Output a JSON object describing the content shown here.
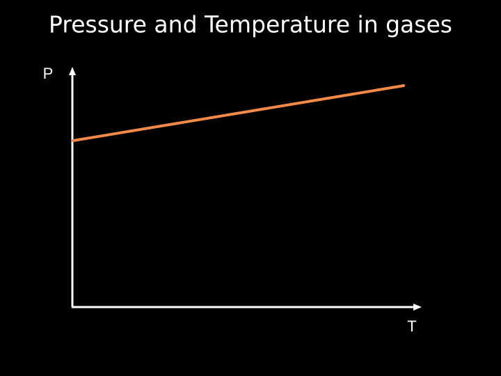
{
  "title": "Pressure and Temperature in gases",
  "axes": {
    "y_label": "P",
    "x_label": "T"
  }
}
